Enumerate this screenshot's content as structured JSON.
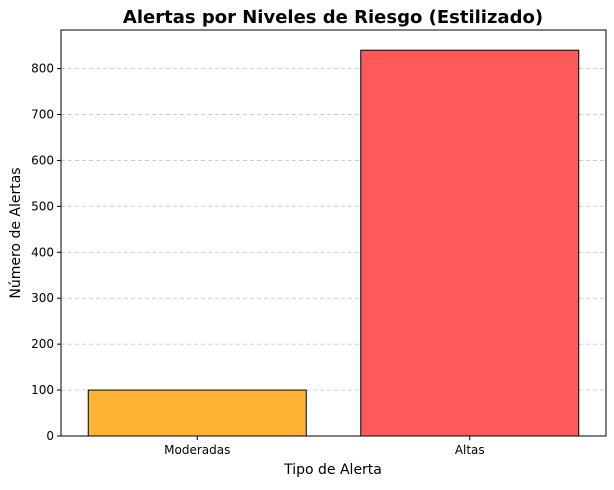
{
  "chart_data": {
    "type": "bar",
    "title": "Alertas por Niveles de Riesgo (Estilizado)",
    "xlabel": "Tipo de Alerta",
    "ylabel": "Número de Alertas",
    "categories": [
      "Moderadas",
      "Altas"
    ],
    "values": [
      100,
      840
    ],
    "colors": [
      "#ffb533",
      "#ff5a5a"
    ],
    "ylim": [
      0,
      884
    ],
    "yticks": [
      0,
      100,
      200,
      300,
      400,
      500,
      600,
      700,
      800
    ],
    "grid": "y-dashed",
    "legend": "none"
  }
}
